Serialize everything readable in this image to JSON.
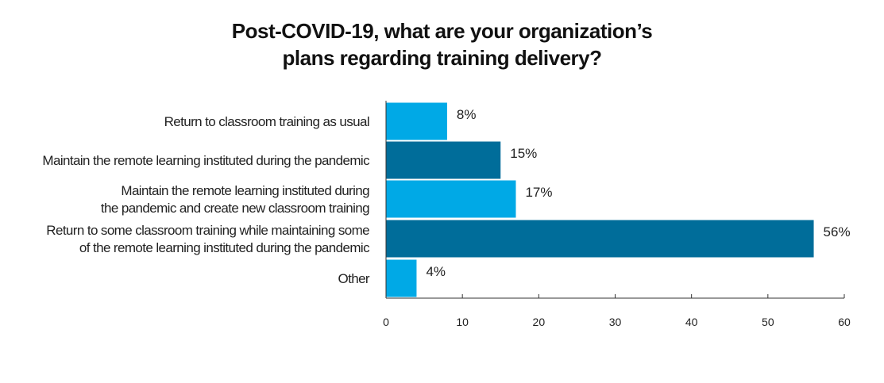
{
  "chart_data": {
    "type": "bar",
    "orientation": "horizontal",
    "title_lines": [
      "Post-COVID-19, what are your organization’s",
      "plans regarding training delivery?"
    ],
    "categories": [
      [
        "Return to classroom training as usual"
      ],
      [
        "Maintain the remote learning instituted during the pandemic"
      ],
      [
        "Maintain the remote learning instituted during",
        "the pandemic and create new classroom training"
      ],
      [
        "Return to some classroom training while maintaining some",
        "of the remote learning instituted during the pandemic"
      ],
      [
        "Other"
      ]
    ],
    "values": [
      8,
      15,
      17,
      56,
      4
    ],
    "value_labels": [
      "8%",
      "15%",
      "17%",
      "56%",
      "4%"
    ],
    "bar_colors": [
      "#00a9e6",
      "#006d9a",
      "#00a9e6",
      "#006d9a",
      "#00a9e6"
    ],
    "xlim": [
      0,
      60
    ],
    "xticks": [
      0,
      10,
      20,
      30,
      40,
      50,
      60
    ],
    "grid": false,
    "legend": "none"
  }
}
